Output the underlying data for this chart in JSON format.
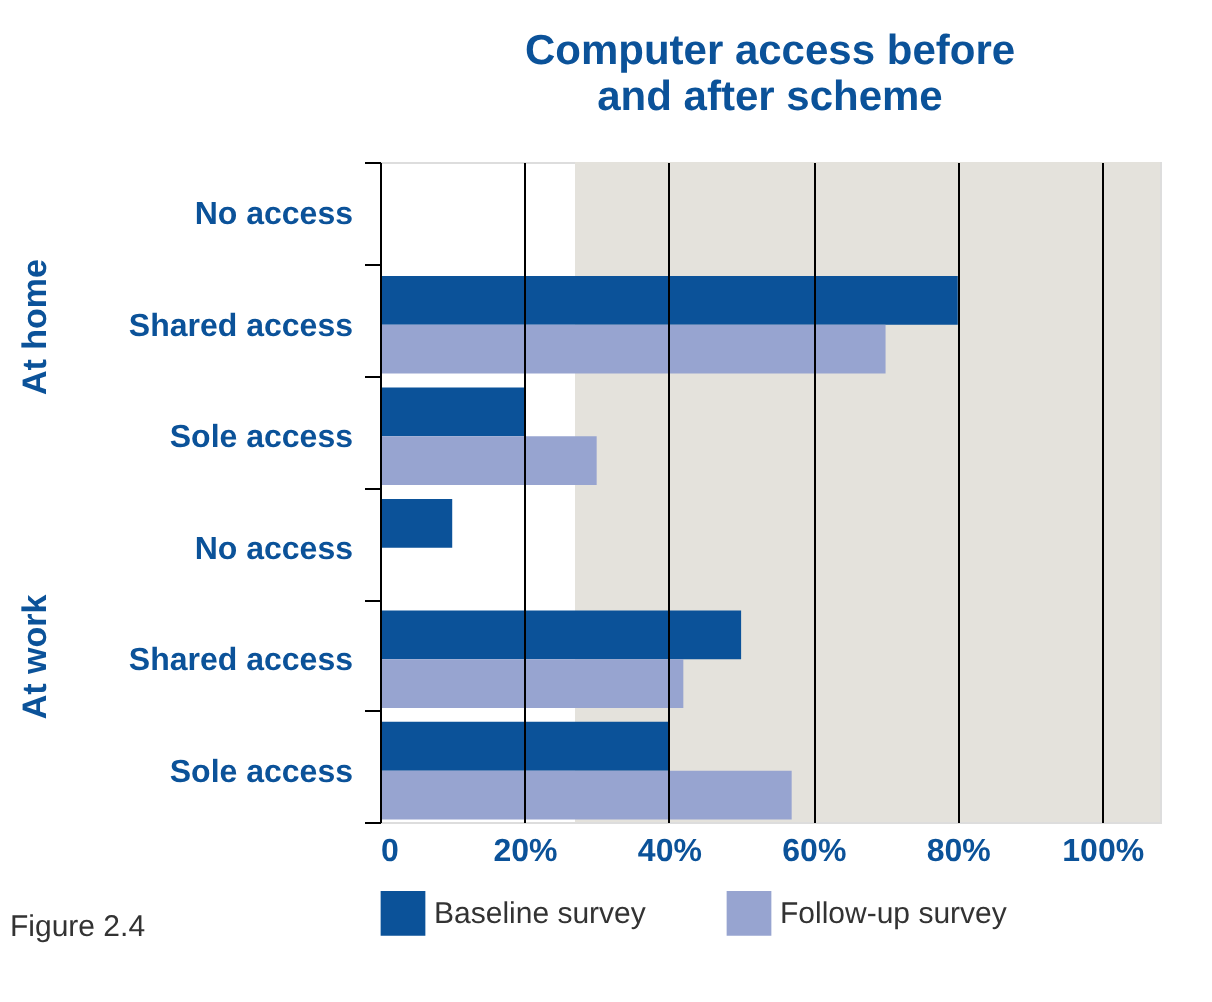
{
  "chart_data": {
    "type": "bar",
    "orientation": "horizontal",
    "title": "Computer access before\nand after scheme",
    "categories": [
      "No access",
      "Shared access",
      "Sole access",
      "No access",
      "Shared access",
      "Sole access"
    ],
    "series": [
      {
        "name": "Baseline survey",
        "color": "#0b5299",
        "values": [
          null,
          80,
          20,
          10,
          50,
          40
        ]
      },
      {
        "name": "Follow-up survey",
        "color": "#97a4d0",
        "values": [
          null,
          70,
          30,
          null,
          42,
          57
        ]
      }
    ],
    "xlim": [
      0,
      108
    ],
    "xticks": [
      0,
      {
        "value": 20,
        "label": "20%"
      },
      {
        "value": 40,
        "label": "40%"
      },
      {
        "value": 60,
        "label": "60%"
      },
      {
        "value": 80,
        "label": "80%"
      },
      {
        "value": 100,
        "label": "100%"
      }
    ],
    "bands": [
      {
        "axis": "x",
        "from": 27,
        "to": 108,
        "color": "#e4e2dc"
      }
    ],
    "grid": "x",
    "legend": "bottom",
    "annotations": [
      "At home",
      "At work",
      "Figure 2.4"
    ]
  }
}
